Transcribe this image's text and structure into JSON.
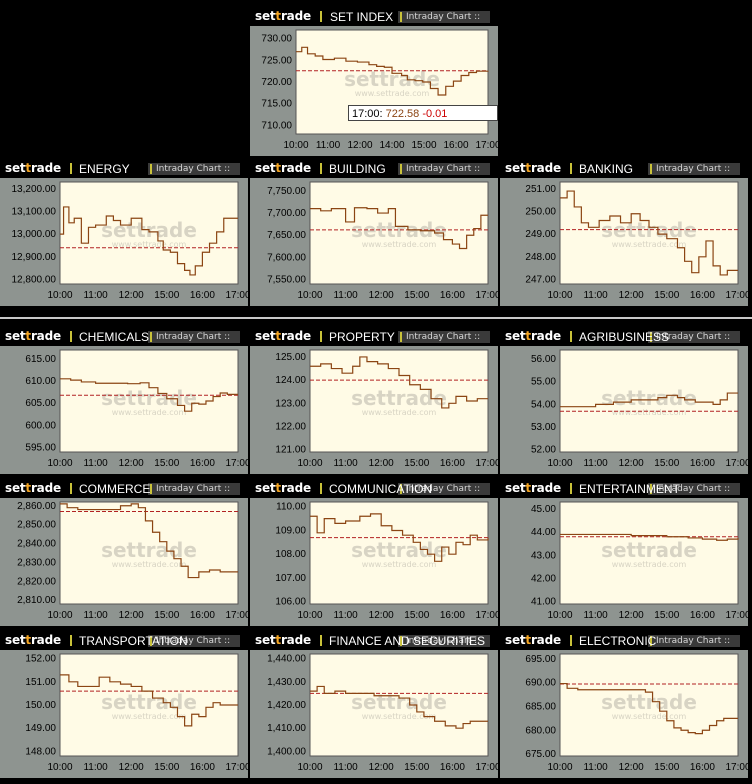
{
  "brand": {
    "left": "set",
    "mid": "t",
    "right": "rade"
  },
  "intraday_label": "Intraday Chart ::",
  "tooltip": {
    "time": "17:00",
    "value": "722.58",
    "change": "-0.01"
  },
  "colors": {
    "line": "#8b4513",
    "ref": "#b22222",
    "plot_bg": "#fffbe6",
    "panel": "#8e9490",
    "watermark": "#d8d4c4"
  },
  "watermark": {
    "big": "settrade",
    "small": "www.settrade.com"
  },
  "chart_data": [
    {
      "title": "SET INDEX",
      "type": "line",
      "x_ticks": [
        "10:00",
        "11:00",
        "12:00",
        "14:00",
        "15:00",
        "16:00",
        "17:00"
      ],
      "y_ticks": [
        "730.00",
        "725.00",
        "720.00",
        "715.00",
        "710.00"
      ],
      "ylim": [
        708,
        732
      ],
      "ref": 722.59,
      "values": [
        [
          0,
          727
        ],
        [
          0.03,
          728
        ],
        [
          0.06,
          726.5
        ],
        [
          0.1,
          726
        ],
        [
          0.14,
          725.2
        ],
        [
          0.2,
          725.5
        ],
        [
          0.26,
          724.8
        ],
        [
          0.32,
          724.6
        ],
        [
          0.38,
          724
        ],
        [
          0.42,
          723.6
        ],
        [
          0.46,
          723.4
        ],
        [
          0.5,
          722
        ],
        [
          0.55,
          721.5
        ],
        [
          0.58,
          720.5
        ],
        [
          0.62,
          720.3
        ],
        [
          0.66,
          720
        ],
        [
          0.7,
          718.5
        ],
        [
          0.74,
          717
        ],
        [
          0.78,
          719
        ],
        [
          0.82,
          720.2
        ],
        [
          0.86,
          721.5
        ],
        [
          0.9,
          722.2
        ],
        [
          0.94,
          722.5
        ],
        [
          1.0,
          722.58
        ]
      ]
    },
    {
      "title": "ENERGY",
      "type": "line",
      "x_ticks": [
        "10:00",
        "11:00",
        "12:00",
        "15:00",
        "16:00",
        "17:00"
      ],
      "y_ticks": [
        "13,200.00",
        "13,100.00",
        "13,000.00",
        "12,900.00",
        "12,800.00"
      ],
      "ylim": [
        12780,
        13230
      ],
      "ref": 12940,
      "values": [
        [
          0,
          13000
        ],
        [
          0.02,
          13120
        ],
        [
          0.05,
          13050
        ],
        [
          0.08,
          13070
        ],
        [
          0.12,
          12960
        ],
        [
          0.16,
          13030
        ],
        [
          0.2,
          13040
        ],
        [
          0.26,
          13080
        ],
        [
          0.3,
          13060
        ],
        [
          0.34,
          13040
        ],
        [
          0.4,
          13070
        ],
        [
          0.46,
          13020
        ],
        [
          0.5,
          13010
        ],
        [
          0.55,
          12970
        ],
        [
          0.58,
          12930
        ],
        [
          0.62,
          12920
        ],
        [
          0.66,
          12870
        ],
        [
          0.7,
          12840
        ],
        [
          0.73,
          12820
        ],
        [
          0.76,
          12860
        ],
        [
          0.8,
          12920
        ],
        [
          0.84,
          12960
        ],
        [
          0.88,
          13010
        ],
        [
          0.92,
          13070
        ],
        [
          1.0,
          13070
        ]
      ]
    },
    {
      "title": "BUILDING",
      "type": "line",
      "x_ticks": [
        "10:00",
        "11:00",
        "12:00",
        "15:00",
        "16:00",
        "17:00"
      ],
      "y_ticks": [
        "7,750.00",
        "7,700.00",
        "7,650.00",
        "7,600.00",
        "7,550.00"
      ],
      "ylim": [
        7540,
        7770
      ],
      "ref": 7662,
      "values": [
        [
          0,
          7710
        ],
        [
          0.06,
          7705
        ],
        [
          0.12,
          7710
        ],
        [
          0.2,
          7680
        ],
        [
          0.25,
          7712
        ],
        [
          0.32,
          7710
        ],
        [
          0.38,
          7700
        ],
        [
          0.44,
          7710
        ],
        [
          0.48,
          7670
        ],
        [
          0.55,
          7662
        ],
        [
          0.62,
          7660
        ],
        [
          0.7,
          7655
        ],
        [
          0.75,
          7640
        ],
        [
          0.8,
          7630
        ],
        [
          0.84,
          7620
        ],
        [
          0.88,
          7650
        ],
        [
          0.92,
          7665
        ],
        [
          0.96,
          7695
        ],
        [
          1.0,
          7695
        ]
      ]
    },
    {
      "title": "BANKING",
      "type": "line",
      "x_ticks": [
        "10:00",
        "11:00",
        "12:00",
        "15:00",
        "16:00",
        "17:00"
      ],
      "y_ticks": [
        "251.00",
        "250.00",
        "249.00",
        "248.00",
        "247.00"
      ],
      "ylim": [
        246.8,
        251.3
      ],
      "ref": 249.2,
      "values": [
        [
          0,
          250.6
        ],
        [
          0.04,
          250.9
        ],
        [
          0.08,
          250.2
        ],
        [
          0.12,
          249.5
        ],
        [
          0.16,
          249.3
        ],
        [
          0.22,
          249.6
        ],
        [
          0.28,
          249.8
        ],
        [
          0.34,
          249.5
        ],
        [
          0.4,
          249.9
        ],
        [
          0.45,
          249.6
        ],
        [
          0.5,
          249.3
        ],
        [
          0.55,
          249.0
        ],
        [
          0.6,
          248.8
        ],
        [
          0.66,
          248.4
        ],
        [
          0.7,
          247.8
        ],
        [
          0.74,
          247.3
        ],
        [
          0.78,
          248.0
        ],
        [
          0.82,
          248.7
        ],
        [
          0.86,
          247.6
        ],
        [
          0.9,
          247.2
        ],
        [
          0.94,
          247.4
        ],
        [
          1.0,
          247.4
        ]
      ]
    },
    {
      "title": "CHEMICALS",
      "type": "line",
      "x_ticks": [
        "10:00",
        "11:00",
        "12:00",
        "15:00",
        "16:00",
        "17:00"
      ],
      "y_ticks": [
        "615.00",
        "610.00",
        "605.00",
        "600.00",
        "595.00"
      ],
      "ylim": [
        594,
        617
      ],
      "ref": 606.8,
      "values": [
        [
          0,
          610.5
        ],
        [
          0.06,
          610.2
        ],
        [
          0.12,
          609.8
        ],
        [
          0.2,
          609.5
        ],
        [
          0.3,
          609.5
        ],
        [
          0.38,
          609.4
        ],
        [
          0.45,
          609.6
        ],
        [
          0.5,
          608.5
        ],
        [
          0.55,
          607.2
        ],
        [
          0.6,
          606.0
        ],
        [
          0.66,
          604.5
        ],
        [
          0.7,
          603.2
        ],
        [
          0.74,
          605.0
        ],
        [
          0.78,
          604.8
        ],
        [
          0.82,
          605.5
        ],
        [
          0.86,
          606.5
        ],
        [
          0.9,
          607.3
        ],
        [
          0.94,
          607.0
        ],
        [
          1.0,
          607.0
        ]
      ]
    },
    {
      "title": "PROPERTY",
      "type": "line",
      "x_ticks": [
        "10:00",
        "11:00",
        "12:00",
        "15:00",
        "16:00",
        "17:00"
      ],
      "y_ticks": [
        "125.00",
        "124.00",
        "123.00",
        "122.00",
        "121.00"
      ],
      "ylim": [
        120.9,
        125.3
      ],
      "ref": 124.0,
      "values": [
        [
          0,
          124.6
        ],
        [
          0.06,
          124.7
        ],
        [
          0.12,
          124.5
        ],
        [
          0.18,
          124.3
        ],
        [
          0.24,
          124.6
        ],
        [
          0.28,
          125.0
        ],
        [
          0.32,
          124.8
        ],
        [
          0.38,
          124.7
        ],
        [
          0.44,
          124.5
        ],
        [
          0.5,
          124.2
        ],
        [
          0.56,
          123.8
        ],
        [
          0.62,
          123.6
        ],
        [
          0.68,
          123.2
        ],
        [
          0.74,
          122.8
        ],
        [
          0.78,
          123.0
        ],
        [
          0.82,
          123.3
        ],
        [
          0.88,
          123.1
        ],
        [
          0.94,
          123.2
        ],
        [
          1.0,
          123.2
        ]
      ]
    },
    {
      "title": "AGRIBUSINESS",
      "type": "line",
      "x_ticks": [
        "10:00",
        "11:00",
        "12:00",
        "15:00",
        "16:00",
        "17:00"
      ],
      "y_ticks": [
        "56.00",
        "55.00",
        "54.00",
        "53.00",
        "52.00"
      ],
      "ylim": [
        51.9,
        56.4
      ],
      "ref": 53.7,
      "values": [
        [
          0,
          53.9
        ],
        [
          0.1,
          53.9
        ],
        [
          0.2,
          54.0
        ],
        [
          0.3,
          54.1
        ],
        [
          0.4,
          54.2
        ],
        [
          0.5,
          54.2
        ],
        [
          0.55,
          54.3
        ],
        [
          0.6,
          54.4
        ],
        [
          0.66,
          54.3
        ],
        [
          0.7,
          54.2
        ],
        [
          0.76,
          54.1
        ],
        [
          0.82,
          54.1
        ],
        [
          0.86,
          54.0
        ],
        [
          0.9,
          54.2
        ],
        [
          0.94,
          54.5
        ],
        [
          1.0,
          54.5
        ]
      ]
    },
    {
      "title": "COMMERCE",
      "type": "line",
      "x_ticks": [
        "10:00",
        "11:00",
        "12:00",
        "15:00",
        "16:00",
        "17:00"
      ],
      "y_ticks": [
        "2,860.00",
        "2,850.00",
        "2,840.00",
        "2,830.00",
        "2,820.00",
        "2,810.00"
      ],
      "ylim": [
        2808,
        2862
      ],
      "ref": 2857,
      "values": [
        [
          0,
          2861
        ],
        [
          0.04,
          2859
        ],
        [
          0.1,
          2858
        ],
        [
          0.18,
          2858
        ],
        [
          0.26,
          2858
        ],
        [
          0.34,
          2860
        ],
        [
          0.4,
          2861
        ],
        [
          0.44,
          2859
        ],
        [
          0.48,
          2852
        ],
        [
          0.52,
          2846
        ],
        [
          0.56,
          2841
        ],
        [
          0.6,
          2836
        ],
        [
          0.64,
          2832
        ],
        [
          0.68,
          2828
        ],
        [
          0.72,
          2822
        ],
        [
          0.78,
          2825
        ],
        [
          0.84,
          2826
        ],
        [
          0.9,
          2825
        ],
        [
          1.0,
          2825
        ]
      ]
    },
    {
      "title": "COMMUNICATION",
      "type": "line",
      "x_ticks": [
        "10:00",
        "11:00",
        "12:00",
        "15:00",
        "16:00",
        "17:00"
      ],
      "y_ticks": [
        "110.00",
        "109.00",
        "108.00",
        "107.00",
        "106.00"
      ],
      "ylim": [
        105.9,
        110.2
      ],
      "ref": 108.7,
      "values": [
        [
          0,
          109.6
        ],
        [
          0.04,
          108.9
        ],
        [
          0.08,
          109.5
        ],
        [
          0.14,
          109.3
        ],
        [
          0.2,
          109.4
        ],
        [
          0.28,
          109.6
        ],
        [
          0.34,
          109.7
        ],
        [
          0.4,
          109.2
        ],
        [
          0.46,
          109.0
        ],
        [
          0.52,
          108.8
        ],
        [
          0.58,
          108.5
        ],
        [
          0.62,
          108.2
        ],
        [
          0.66,
          108.0
        ],
        [
          0.7,
          107.7
        ],
        [
          0.74,
          108.3
        ],
        [
          0.78,
          108.0
        ],
        [
          0.82,
          108.5
        ],
        [
          0.86,
          108.4
        ],
        [
          0.9,
          108.8
        ],
        [
          0.94,
          108.6
        ],
        [
          1.0,
          108.7
        ]
      ]
    },
    {
      "title": "ENTERTAINMENT",
      "type": "line",
      "x_ticks": [
        "10:00",
        "11:00",
        "12:00",
        "15:00",
        "16:00",
        "17:00"
      ],
      "y_ticks": [
        "45.00",
        "44.00",
        "43.00",
        "42.00",
        "41.00"
      ],
      "ylim": [
        40.9,
        45.3
      ],
      "ref": 43.8,
      "values": [
        [
          0,
          43.9
        ],
        [
          0.2,
          43.9
        ],
        [
          0.4,
          43.85
        ],
        [
          0.6,
          43.8
        ],
        [
          0.72,
          43.75
        ],
        [
          0.8,
          43.7
        ],
        [
          0.88,
          43.65
        ],
        [
          0.94,
          43.7
        ],
        [
          1.0,
          43.75
        ]
      ]
    },
    {
      "title": "TRANSPORTATION",
      "type": "line",
      "x_ticks": [
        "10:00",
        "11:00",
        "12:00",
        "15:00",
        "16:00",
        "17:00"
      ],
      "y_ticks": [
        "152.00",
        "151.00",
        "150.00",
        "149.00",
        "148.00"
      ],
      "ylim": [
        147.8,
        152.2
      ],
      "ref": 150.6,
      "values": [
        [
          0,
          151.3
        ],
        [
          0.05,
          151.0
        ],
        [
          0.1,
          150.8
        ],
        [
          0.16,
          150.8
        ],
        [
          0.22,
          151.2
        ],
        [
          0.28,
          151.0
        ],
        [
          0.34,
          150.9
        ],
        [
          0.4,
          150.8
        ],
        [
          0.46,
          150.6
        ],
        [
          0.52,
          150.3
        ],
        [
          0.58,
          150.1
        ],
        [
          0.62,
          149.9
        ],
        [
          0.66,
          149.5
        ],
        [
          0.7,
          149.1
        ],
        [
          0.74,
          149.6
        ],
        [
          0.78,
          149.5
        ],
        [
          0.82,
          149.9
        ],
        [
          0.86,
          150.1
        ],
        [
          0.9,
          150.0
        ],
        [
          1.0,
          150.0
        ]
      ]
    },
    {
      "title": "FINANCE AND SECURITIES",
      "type": "line",
      "x_ticks": [
        "10:00",
        "11:00",
        "12:00",
        "15:00",
        "16:00",
        "17:00"
      ],
      "y_ticks": [
        "1,440.00",
        "1,430.00",
        "1,420.00",
        "1,410.00",
        "1,400.00"
      ],
      "ylim": [
        1398,
        1442
      ],
      "ref": 1425,
      "values": [
        [
          0,
          1426
        ],
        [
          0.04,
          1428
        ],
        [
          0.08,
          1425
        ],
        [
          0.14,
          1426
        ],
        [
          0.2,
          1425
        ],
        [
          0.28,
          1425
        ],
        [
          0.36,
          1424
        ],
        [
          0.44,
          1424
        ],
        [
          0.5,
          1423
        ],
        [
          0.56,
          1420
        ],
        [
          0.6,
          1417
        ],
        [
          0.64,
          1415
        ],
        [
          0.7,
          1413
        ],
        [
          0.76,
          1411
        ],
        [
          0.82,
          1410
        ],
        [
          0.86,
          1412
        ],
        [
          0.9,
          1413
        ],
        [
          1.0,
          1413
        ]
      ]
    },
    {
      "title": "ELECTRONIC",
      "type": "line",
      "x_ticks": [
        "10:00",
        "11:00",
        "12:00",
        "15:00",
        "16:00",
        "17:00"
      ],
      "y_ticks": [
        "695.00",
        "690.00",
        "685.00",
        "680.00",
        "675.00"
      ],
      "ylim": [
        674.6,
        696
      ],
      "ref": 689.7,
      "values": [
        [
          0,
          689.8
        ],
        [
          0.04,
          688.8
        ],
        [
          0.1,
          688.5
        ],
        [
          0.2,
          688.5
        ],
        [
          0.32,
          688.5
        ],
        [
          0.44,
          688.5
        ],
        [
          0.48,
          688.0
        ],
        [
          0.52,
          686.0
        ],
        [
          0.56,
          684.0
        ],
        [
          0.6,
          682.0
        ],
        [
          0.64,
          680.5
        ],
        [
          0.68,
          680.0
        ],
        [
          0.72,
          679.5
        ],
        [
          0.76,
          679.3
        ],
        [
          0.8,
          680.0
        ],
        [
          0.84,
          681.0
        ],
        [
          0.88,
          682.0
        ],
        [
          0.92,
          682.5
        ],
        [
          1.0,
          682.5
        ]
      ]
    }
  ]
}
